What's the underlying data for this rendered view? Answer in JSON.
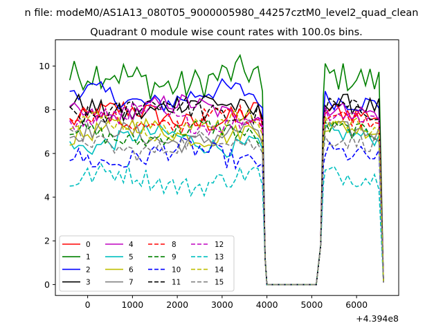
{
  "chart_data": {
    "type": "line",
    "suptitle": "n file: modeM0/AS1A13_080T05_9000005980_44257cztM0_level2_quad_clean",
    "title": "Quadrant 0 module wise count rates with 100.0s bins.",
    "xlabel": "",
    "ylabel": "",
    "x_offset_label": "+4.394e8",
    "xlim": [
      -720,
      6940
    ],
    "ylim": [
      -0.5,
      11.2
    ],
    "xticks": [
      0,
      1000,
      2000,
      3000,
      4000,
      5000,
      6000
    ],
    "xtick_labels": [
      "0",
      "1000",
      "2000",
      "3000",
      "4000",
      "5000",
      "6000"
    ],
    "yticks": [
      0,
      2,
      4,
      6,
      8,
      10
    ],
    "ytick_labels": [
      "0",
      "2",
      "4",
      "6",
      "8",
      "10"
    ],
    "grid": false,
    "legend_placement": "lower-left",
    "series": [
      {
        "name": "0",
        "color": "#ff0000",
        "dash": "solid",
        "base": 7.7,
        "amp": 0.35,
        "seg2": 8.0
      },
      {
        "name": "1",
        "color": "#008000",
        "dash": "solid",
        "base": 9.4,
        "amp": 0.55,
        "seg2": 9.6
      },
      {
        "name": "2",
        "color": "#0000ff",
        "dash": "solid",
        "base": 8.6,
        "amp": 0.35,
        "seg2": 8.5
      },
      {
        "name": "3",
        "color": "#000000",
        "dash": "solid",
        "base": 8.1,
        "amp": 0.35,
        "seg2": 8.4
      },
      {
        "name": "4",
        "color": "#bf00bf",
        "dash": "solid",
        "base": 8.0,
        "amp": 0.3,
        "seg2": 8.1
      },
      {
        "name": "5",
        "color": "#00bfbf",
        "dash": "solid",
        "base": 6.6,
        "amp": 0.3,
        "seg2": 7.0
      },
      {
        "name": "6",
        "color": "#bfbf00",
        "dash": "solid",
        "base": 7.0,
        "amp": 0.3,
        "seg2": 7.3
      },
      {
        "name": "7",
        "color": "#808080",
        "dash": "solid",
        "base": 6.8,
        "amp": 0.3,
        "seg2": 7.2
      },
      {
        "name": "8",
        "color": "#ff0000",
        "dash": "dashed",
        "base": 7.5,
        "amp": 0.3,
        "seg2": 7.8
      },
      {
        "name": "9",
        "color": "#008000",
        "dash": "dashed",
        "base": 6.9,
        "amp": 0.3,
        "seg2": 7.2
      },
      {
        "name": "10",
        "color": "#0000ff",
        "dash": "dashed",
        "base": 5.9,
        "amp": 0.35,
        "seg2": 6.1
      },
      {
        "name": "11",
        "color": "#000000",
        "dash": "dashed",
        "base": 8.0,
        "amp": 0.35,
        "seg2": 8.2
      },
      {
        "name": "12",
        "color": "#bf00bf",
        "dash": "dashed",
        "base": 7.6,
        "amp": 0.3,
        "seg2": 7.9
      },
      {
        "name": "13",
        "color": "#00bfbf",
        "dash": "dashed",
        "base": 4.8,
        "amp": 0.35,
        "seg2": 5.1
      },
      {
        "name": "14",
        "color": "#bfbf00",
        "dash": "dashed",
        "base": 7.3,
        "amp": 0.3,
        "seg2": 7.5
      },
      {
        "name": "15",
        "color": "#808080",
        "dash": "dashed",
        "base": 6.4,
        "amp": 0.3,
        "seg2": 6.7
      }
    ]
  }
}
